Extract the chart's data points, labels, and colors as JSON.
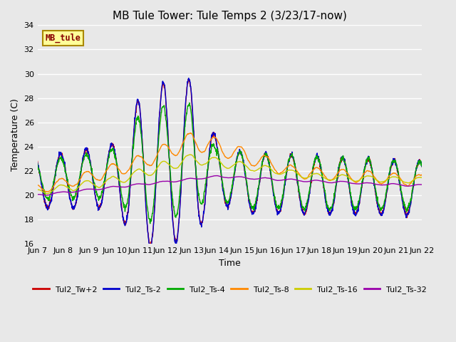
{
  "title": "MB Tule Tower: Tule Temps 2 (3/23/17-now)",
  "xlabel": "Time",
  "ylabel": "Temperature (C)",
  "ylim": [
    16,
    34
  ],
  "yticks": [
    16,
    18,
    20,
    22,
    24,
    26,
    28,
    30,
    32,
    34
  ],
  "plot_bg_color": "#e8e8e8",
  "grid_color": "#ffffff",
  "title_fontsize": 11,
  "label_fontsize": 9,
  "tick_fontsize": 8,
  "series_order": [
    "Tul2_Tw+2",
    "Tul2_Ts-2",
    "Tul2_Ts-4",
    "Tul2_Ts-8",
    "Tul2_Ts-16",
    "Tul2_Ts-32"
  ],
  "series_colors": [
    "#cc0000",
    "#0000cc",
    "#00aa00",
    "#ff8800",
    "#cccc00",
    "#9900aa"
  ],
  "xtick_labels": [
    "Jun 7",
    "Jun 8",
    "Jun 9",
    "Jun 10",
    "Jun 11",
    "Jun 12",
    "Jun 13",
    "Jun 14",
    "Jun 15",
    "Jun 16",
    "Jun 17",
    "Jun 18",
    "Jun 19",
    "Jun 20",
    "Jun 21",
    "Jun 22"
  ],
  "watermark_text": "MB_tule",
  "watermark_bg": "#ffff99",
  "watermark_border": "#aa8800",
  "watermark_text_color": "#880000",
  "lw": 1.0
}
